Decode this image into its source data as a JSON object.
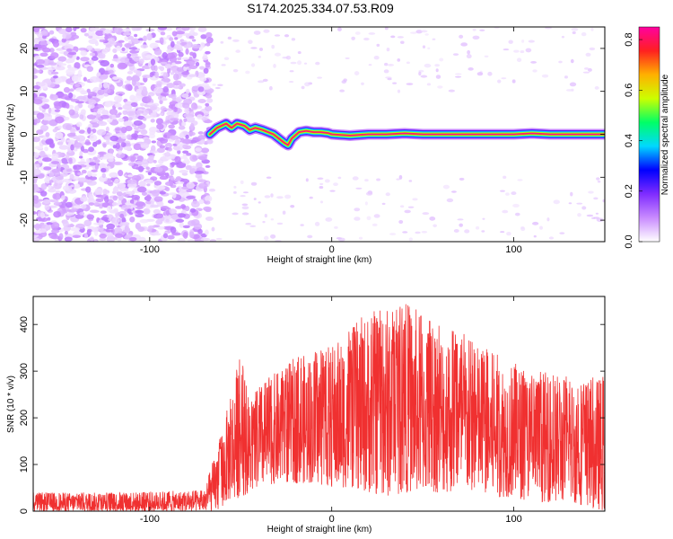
{
  "title": "S174.2025.334.07.53.R09",
  "chart_data": [
    {
      "type": "heatmap",
      "name": "spectrogram",
      "xlabel": "Height of straight line (km)",
      "ylabel": "Frequency (Hz)",
      "xlim": [
        -164,
        150
      ],
      "ylim": [
        -25,
        25
      ],
      "xticks": [
        -100,
        0,
        100
      ],
      "yticks": [
        -20,
        -10,
        0,
        10,
        20
      ],
      "noise_region": {
        "x_range": [
          -164,
          -67
        ],
        "y_range": [
          -25,
          25
        ],
        "amplitude": [
          0.02,
          0.12
        ]
      },
      "sparse_noise_region": {
        "x_range": [
          -67,
          150
        ],
        "y_band_upper": [
          10,
          25
        ],
        "y_band_lower": [
          -25,
          -10
        ],
        "amplitude": [
          0.02,
          0.06
        ]
      },
      "ridge": {
        "x": [
          -67,
          -63,
          -58,
          -55,
          -52,
          -48,
          -45,
          -42,
          -38,
          -35,
          -32,
          -29,
          -26,
          -24,
          -22,
          -18,
          -14,
          -10,
          -6,
          -2,
          0,
          10,
          20,
          30,
          40,
          50,
          60,
          70,
          80,
          90,
          100,
          110,
          120,
          130,
          140,
          150
        ],
        "y": [
          0,
          1.5,
          2.5,
          1.5,
          2.5,
          2.0,
          1.0,
          1.5,
          1.0,
          0.5,
          0.0,
          -1.0,
          -2.0,
          -2.5,
          -1.0,
          0.5,
          0.8,
          0.5,
          0.5,
          0.3,
          0.0,
          -0.3,
          0.0,
          0.0,
          0.2,
          0.0,
          0.0,
          0.0,
          0.0,
          0.0,
          0.0,
          0.2,
          0.0,
          0.0,
          0.0,
          0.0
        ],
        "amplitude": 0.85
      },
      "colorbar": {
        "label": "Normalized spectral amplitude",
        "range": [
          0.0,
          0.85
        ],
        "ticks": [
          0.0,
          0.2,
          0.4,
          0.6,
          0.8
        ],
        "colors": [
          "#ffffff",
          "#c98bff",
          "#7f2cff",
          "#0000ff",
          "#00d8ff",
          "#00ff66",
          "#ccff00",
          "#ffb000",
          "#ff2020",
          "#ff00a0"
        ]
      }
    },
    {
      "type": "line",
      "name": "snr",
      "xlabel": "Height of straight line (km)",
      "ylabel": "SNR (10 * v/v)",
      "xlim": [
        -164,
        150
      ],
      "ylim": [
        0,
        460
      ],
      "xticks": [
        -100,
        0,
        100
      ],
      "yticks": [
        0,
        100,
        200,
        300,
        400
      ],
      "color": "#f03030",
      "envelope": {
        "x": [
          -164,
          -120,
          -70,
          -62,
          -58,
          -50,
          -45,
          -40,
          -30,
          -20,
          -10,
          0,
          10,
          20,
          30,
          40,
          50,
          60,
          70,
          80,
          90,
          100,
          110,
          120,
          130,
          140,
          150
        ],
        "max": [
          40,
          40,
          45,
          150,
          210,
          350,
          230,
          270,
          300,
          330,
          340,
          360,
          390,
          430,
          440,
          455,
          420,
          400,
          390,
          360,
          340,
          320,
          300,
          300,
          290,
          290,
          290
        ],
        "min": [
          0,
          0,
          0,
          0,
          20,
          30,
          40,
          50,
          60,
          60,
          60,
          50,
          50,
          40,
          30,
          40,
          40,
          40,
          40,
          40,
          30,
          30,
          20,
          20,
          20,
          10,
          0
        ]
      }
    }
  ]
}
